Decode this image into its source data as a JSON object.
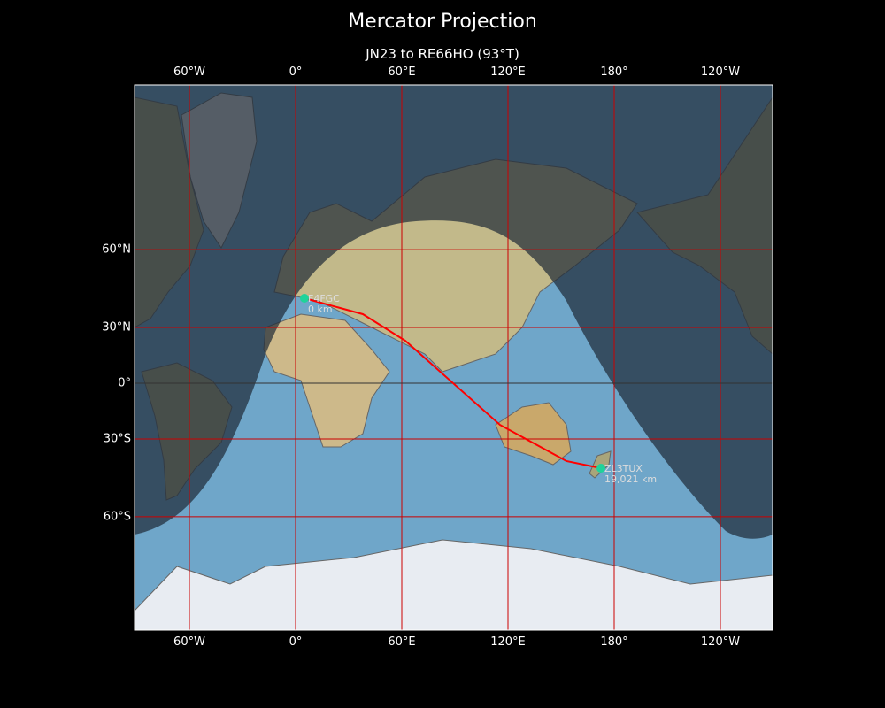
{
  "title": "Mercator Projection",
  "subtitle": "JN23 to RE66HO (93°T)",
  "axes": {
    "lon_ticks": [
      {
        "lon": -60,
        "label": "60°W"
      },
      {
        "lon": 0,
        "label": "0°"
      },
      {
        "lon": 60,
        "label": "60°E"
      },
      {
        "lon": 120,
        "label": "120°E"
      },
      {
        "lon": 180,
        "label": "180°"
      },
      {
        "lon": 240,
        "label": "120°W"
      }
    ],
    "lat_ticks": [
      {
        "lat": 60,
        "label": "60°N"
      },
      {
        "lat": 30,
        "label": "30°N"
      },
      {
        "lat": 0,
        "label": "0°"
      },
      {
        "lat": -30,
        "label": "30°S"
      },
      {
        "lat": -60,
        "label": "60°S"
      }
    ],
    "gridline_color": "#cc0000"
  },
  "stations": [
    {
      "call": "F4FGC",
      "distance": "0 km",
      "lon": 5,
      "lat": 43.2
    },
    {
      "call": "ZL3TUX",
      "distance": "19,021 km",
      "lon": 172.5,
      "lat": -43.2
    }
  ],
  "route": {
    "color": "#ff0000",
    "points": [
      [
        5,
        43.2
      ],
      [
        38,
        36.3
      ],
      [
        62,
        23.3
      ],
      [
        115.5,
        -22.9
      ],
      [
        153,
        -40.2
      ],
      [
        172.5,
        -43.2
      ]
    ]
  },
  "colors": {
    "station_marker": "#1fd39a",
    "ocean": "#6fa6c9",
    "night_overlay": "#1e2a36"
  }
}
